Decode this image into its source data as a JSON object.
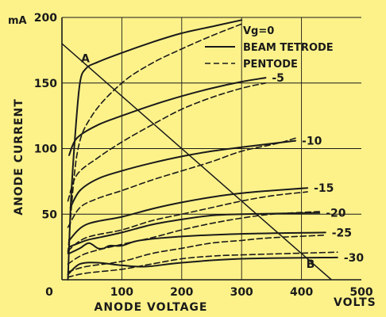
{
  "chart_data": {
    "type": "line",
    "title": "",
    "xlabel": "ANODE VOLTAGE",
    "ylabel": "ANODE CURRENT",
    "x_unit": "VOLTS",
    "y_unit": "mA",
    "xlim": [
      0,
      500
    ],
    "ylim": [
      0,
      200
    ],
    "x_ticks": [
      "0",
      "100",
      "200",
      "300",
      "400",
      "500"
    ],
    "y_ticks": [
      "50",
      "100",
      "150",
      "200"
    ],
    "grid": true,
    "legend": {
      "title": "Vg=0",
      "position": "top-right",
      "items": [
        {
          "label": "BEAM TETRODE",
          "style": "solid"
        },
        {
          "label": "PENTODE",
          "style": "dashed"
        }
      ]
    },
    "series": [
      {
        "group": "beam-tetrode",
        "vg": "0",
        "label": "",
        "points": [
          [
            10,
            0
          ],
          [
            15,
            60
          ],
          [
            22,
            110
          ],
          [
            30,
            150
          ],
          [
            40,
            161
          ],
          [
            60,
            166
          ],
          [
            100,
            173
          ],
          [
            150,
            181
          ],
          [
            200,
            188
          ],
          [
            250,
            193
          ],
          [
            300,
            198
          ]
        ]
      },
      {
        "group": "pentode",
        "vg": "0",
        "label": "",
        "points": [
          [
            10,
            20
          ],
          [
            25,
            95
          ],
          [
            50,
            125
          ],
          [
            100,
            150
          ],
          [
            150,
            165
          ],
          [
            200,
            176
          ],
          [
            250,
            186
          ],
          [
            300,
            195
          ]
        ]
      },
      {
        "group": "beam-tetrode",
        "vg": "-5",
        "label": "-5",
        "points": [
          [
            12,
            95
          ],
          [
            25,
            108
          ],
          [
            60,
            118
          ],
          [
            100,
            125
          ],
          [
            150,
            133
          ],
          [
            200,
            140
          ],
          [
            250,
            146
          ],
          [
            300,
            151
          ],
          [
            340,
            154
          ]
        ]
      },
      {
        "group": "pentode",
        "vg": "-5",
        "label": "",
        "points": [
          [
            10,
            60
          ],
          [
            25,
            80
          ],
          [
            60,
            93
          ],
          [
            100,
            105
          ],
          [
            150,
            118
          ],
          [
            200,
            130
          ],
          [
            250,
            139
          ],
          [
            300,
            146
          ],
          [
            340,
            150
          ]
        ]
      },
      {
        "group": "beam-tetrode",
        "vg": "-10",
        "label": "-10",
        "points": [
          [
            14,
            55
          ],
          [
            30,
            68
          ],
          [
            60,
            77
          ],
          [
            100,
            83
          ],
          [
            150,
            89
          ],
          [
            200,
            94
          ],
          [
            250,
            98
          ],
          [
            300,
            101
          ],
          [
            390,
            106
          ]
        ]
      },
      {
        "group": "pentode",
        "vg": "-10",
        "label": "",
        "points": [
          [
            10,
            40
          ],
          [
            30,
            55
          ],
          [
            60,
            62
          ],
          [
            100,
            68
          ],
          [
            150,
            76
          ],
          [
            200,
            83
          ],
          [
            250,
            90
          ],
          [
            300,
            98
          ],
          [
            360,
            104
          ],
          [
            390,
            108
          ]
        ]
      },
      {
        "group": "beam-tetrode",
        "vg": "-15",
        "label": "-15",
        "points": [
          [
            12,
            30
          ],
          [
            40,
            42
          ],
          [
            100,
            48
          ],
          [
            150,
            54
          ],
          [
            200,
            59
          ],
          [
            250,
            63
          ],
          [
            300,
            66
          ],
          [
            350,
            68
          ],
          [
            410,
            70
          ]
        ]
      },
      {
        "group": "pentode",
        "vg": "-15",
        "label": "",
        "points": [
          [
            10,
            22
          ],
          [
            40,
            32
          ],
          [
            100,
            38
          ],
          [
            150,
            45
          ],
          [
            200,
            50
          ],
          [
            250,
            55
          ],
          [
            300,
            60
          ],
          [
            350,
            64
          ],
          [
            410,
            67
          ]
        ]
      },
      {
        "group": "beam-tetrode",
        "vg": "-20",
        "label": "-20",
        "points": [
          [
            12,
            25
          ],
          [
            40,
            30
          ],
          [
            60,
            32
          ],
          [
            100,
            36
          ],
          [
            150,
            42
          ],
          [
            200,
            46
          ],
          [
            250,
            49
          ],
          [
            300,
            50
          ],
          [
            430,
            51
          ]
        ]
      },
      {
        "group": "pentode",
        "vg": "-20",
        "label": "",
        "points": [
          [
            10,
            12
          ],
          [
            40,
            20
          ],
          [
            100,
            27
          ],
          [
            150,
            32
          ],
          [
            200,
            38
          ],
          [
            250,
            43
          ],
          [
            300,
            47
          ],
          [
            350,
            50
          ],
          [
            430,
            52
          ]
        ]
      },
      {
        "group": "beam-tetrode",
        "vg": "-25",
        "label": "-25",
        "points": [
          [
            12,
            20
          ],
          [
            30,
            24
          ],
          [
            45,
            28
          ],
          [
            60,
            24
          ],
          [
            70,
            24
          ],
          [
            80,
            26
          ],
          [
            100,
            26
          ],
          [
            130,
            30
          ],
          [
            200,
            33
          ],
          [
            300,
            35
          ],
          [
            440,
            36
          ]
        ]
      },
      {
        "group": "pentode",
        "vg": "-25",
        "label": "",
        "points": [
          [
            10,
            6
          ],
          [
            40,
            10
          ],
          [
            100,
            14
          ],
          [
            150,
            20
          ],
          [
            200,
            24
          ],
          [
            250,
            28
          ],
          [
            300,
            30
          ],
          [
            350,
            32
          ],
          [
            440,
            34
          ]
        ]
      },
      {
        "group": "beam-tetrode",
        "vg": "-30",
        "label": "-30",
        "points": [
          [
            10,
            4
          ],
          [
            30,
            12
          ],
          [
            60,
            13
          ],
          [
            100,
            11
          ],
          [
            140,
            10
          ],
          [
            200,
            13
          ],
          [
            300,
            16
          ],
          [
            460,
            17
          ]
        ]
      },
      {
        "group": "pentode",
        "vg": "-30",
        "label": "",
        "points": [
          [
            10,
            2
          ],
          [
            40,
            5
          ],
          [
            100,
            8
          ],
          [
            150,
            12
          ],
          [
            200,
            16
          ],
          [
            250,
            18
          ],
          [
            300,
            19
          ],
          [
            460,
            21
          ]
        ]
      }
    ],
    "load_line": {
      "points": [
        [
          0,
          180
        ],
        [
          450,
          0
        ]
      ]
    },
    "annotations": [
      {
        "text": "A",
        "x": 32,
        "y": 166
      },
      {
        "text": "B",
        "x": 408,
        "y": 9
      }
    ]
  }
}
